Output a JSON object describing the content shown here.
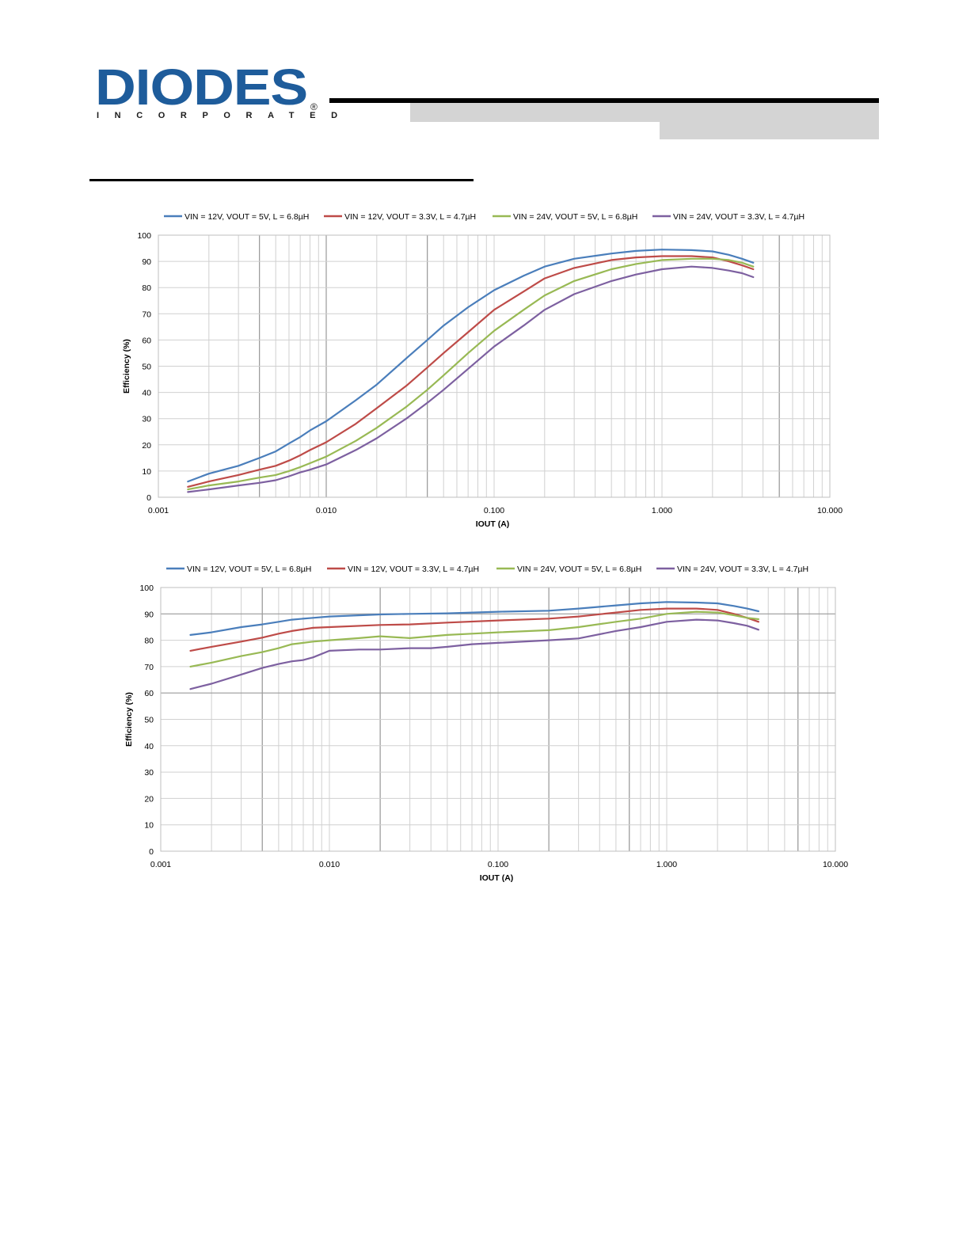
{
  "header": {
    "logo_text": "DIODES",
    "logo_subtext": "INCORPORATED",
    "logo_mark": "®"
  },
  "colors": {
    "logo_blue": "#1e5c9b",
    "series": [
      "#4a7ebb",
      "#be4b48",
      "#98b954",
      "#7d60a0"
    ],
    "grid": "#d0d0d0",
    "major_grid": "#9a9a9a"
  },
  "chart_data": [
    {
      "type": "line",
      "xscale": "log",
      "xlim": [
        0.001,
        10
      ],
      "ylim": [
        0,
        100
      ],
      "xticks": [
        "0.001",
        "0.010",
        "0.100",
        "1.000",
        "10.000"
      ],
      "yticks": [
        "0",
        "10",
        "20",
        "30",
        "40",
        "50",
        "60",
        "70",
        "80",
        "90",
        "100"
      ],
      "xlabel": "IOUT (A)",
      "ylabel": "Efficiency (%)",
      "legend_position": "top",
      "grid": true,
      "series": [
        {
          "name": "VIN = 12V, VOUT = 5V, L = 6.8µH",
          "points": [
            [
              0.0015,
              6
            ],
            [
              0.002,
              9
            ],
            [
              0.003,
              12
            ],
            [
              0.004,
              15
            ],
            [
              0.005,
              17.5
            ],
            [
              0.006,
              20.5
            ],
            [
              0.007,
              23
            ],
            [
              0.008,
              25.5
            ],
            [
              0.01,
              29
            ],
            [
              0.015,
              37
            ],
            [
              0.02,
              43
            ],
            [
              0.03,
              53
            ],
            [
              0.04,
              60
            ],
            [
              0.05,
              65.5
            ],
            [
              0.07,
              72.5
            ],
            [
              0.1,
              79
            ],
            [
              0.15,
              84.5
            ],
            [
              0.2,
              88
            ],
            [
              0.3,
              91
            ],
            [
              0.5,
              93
            ],
            [
              0.7,
              94
            ],
            [
              1,
              94.5
            ],
            [
              1.5,
              94.3
            ],
            [
              2,
              93.8
            ],
            [
              2.5,
              92.5
            ],
            [
              3,
              91
            ],
            [
              3.5,
              89.5
            ]
          ]
        },
        {
          "name": "VIN = 12V, VOUT = 3.3V, L = 4.7µH",
          "points": [
            [
              0.0015,
              4
            ],
            [
              0.002,
              6
            ],
            [
              0.003,
              8.5
            ],
            [
              0.004,
              10.5
            ],
            [
              0.005,
              12
            ],
            [
              0.006,
              14
            ],
            [
              0.007,
              16
            ],
            [
              0.008,
              18
            ],
            [
              0.01,
              21
            ],
            [
              0.015,
              28
            ],
            [
              0.02,
              34
            ],
            [
              0.03,
              42.5
            ],
            [
              0.04,
              49.5
            ],
            [
              0.05,
              55
            ],
            [
              0.07,
              63
            ],
            [
              0.1,
              71.5
            ],
            [
              0.15,
              78.5
            ],
            [
              0.2,
              83.5
            ],
            [
              0.3,
              87.5
            ],
            [
              0.5,
              90.5
            ],
            [
              0.7,
              91.5
            ],
            [
              1,
              92
            ],
            [
              1.5,
              92
            ],
            [
              2,
              91.5
            ],
            [
              2.5,
              90
            ],
            [
              3,
              88.5
            ],
            [
              3.5,
              87
            ]
          ]
        },
        {
          "name": "VIN = 24V, VOUT = 5V, L = 6.8µH",
          "points": [
            [
              0.0015,
              3
            ],
            [
              0.002,
              4.5
            ],
            [
              0.003,
              6
            ],
            [
              0.004,
              7.5
            ],
            [
              0.005,
              8.5
            ],
            [
              0.006,
              10
            ],
            [
              0.007,
              11.5
            ],
            [
              0.008,
              13
            ],
            [
              0.01,
              15.5
            ],
            [
              0.015,
              21.5
            ],
            [
              0.02,
              26.5
            ],
            [
              0.03,
              34.5
            ],
            [
              0.04,
              41
            ],
            [
              0.05,
              46.5
            ],
            [
              0.07,
              55
            ],
            [
              0.1,
              63.5
            ],
            [
              0.15,
              71.5
            ],
            [
              0.2,
              77
            ],
            [
              0.3,
              82.5
            ],
            [
              0.5,
              87
            ],
            [
              0.7,
              89
            ],
            [
              1,
              90.5
            ],
            [
              1.5,
              91
            ],
            [
              2,
              91
            ],
            [
              2.5,
              90.5
            ],
            [
              3,
              89.5
            ],
            [
              3.5,
              88
            ]
          ]
        },
        {
          "name": "VIN = 24V, VOUT = 3.3V, L = 4.7µH",
          "points": [
            [
              0.0015,
              2
            ],
            [
              0.002,
              3
            ],
            [
              0.003,
              4.5
            ],
            [
              0.004,
              5.5
            ],
            [
              0.005,
              6.5
            ],
            [
              0.006,
              8
            ],
            [
              0.007,
              9.5
            ],
            [
              0.008,
              10.5
            ],
            [
              0.01,
              12.5
            ],
            [
              0.015,
              18
            ],
            [
              0.02,
              22.5
            ],
            [
              0.03,
              30
            ],
            [
              0.04,
              36
            ],
            [
              0.05,
              41
            ],
            [
              0.07,
              49
            ],
            [
              0.1,
              57.5
            ],
            [
              0.15,
              65.5
            ],
            [
              0.2,
              71.5
            ],
            [
              0.3,
              77.5
            ],
            [
              0.5,
              82.5
            ],
            [
              0.7,
              85
            ],
            [
              1,
              87
            ],
            [
              1.5,
              88
            ],
            [
              2,
              87.5
            ],
            [
              2.5,
              86.5
            ],
            [
              3,
              85.5
            ],
            [
              3.5,
              84
            ]
          ]
        }
      ]
    },
    {
      "type": "line",
      "xscale": "log",
      "xlim": [
        0.001,
        10
      ],
      "ylim": [
        0,
        100
      ],
      "xticks": [
        "0.001",
        "0.010",
        "0.100",
        "1.000",
        "10.000"
      ],
      "yticks": [
        "0",
        "10",
        "20",
        "30",
        "40",
        "50",
        "60",
        "70",
        "80",
        "90",
        "100"
      ],
      "xlabel": "IOUT (A)",
      "ylabel": "Efficiency (%)",
      "legend_position": "top",
      "grid": true,
      "series": [
        {
          "name": "VIN = 12V, VOUT = 5V, L = 6.8µH",
          "points": [
            [
              0.0015,
              82
            ],
            [
              0.002,
              83
            ],
            [
              0.003,
              85
            ],
            [
              0.004,
              86
            ],
            [
              0.005,
              87
            ],
            [
              0.006,
              87.8
            ],
            [
              0.008,
              88.5
            ],
            [
              0.01,
              89
            ],
            [
              0.02,
              89.8
            ],
            [
              0.03,
              90
            ],
            [
              0.05,
              90.2
            ],
            [
              0.1,
              90.8
            ],
            [
              0.2,
              91.2
            ],
            [
              0.3,
              92
            ],
            [
              0.5,
              93.2
            ],
            [
              0.7,
              94
            ],
            [
              1,
              94.5
            ],
            [
              1.5,
              94.3
            ],
            [
              2,
              94
            ],
            [
              2.5,
              93
            ],
            [
              3,
              92
            ],
            [
              3.5,
              91
            ]
          ]
        },
        {
          "name": "VIN = 12V, VOUT = 3.3V, L = 4.7µH",
          "points": [
            [
              0.0015,
              76
            ],
            [
              0.002,
              77.5
            ],
            [
              0.003,
              79.5
            ],
            [
              0.004,
              81
            ],
            [
              0.005,
              82.5
            ],
            [
              0.006,
              83.5
            ],
            [
              0.008,
              84.7
            ],
            [
              0.01,
              85
            ],
            [
              0.02,
              85.8
            ],
            [
              0.03,
              86
            ],
            [
              0.05,
              86.7
            ],
            [
              0.1,
              87.5
            ],
            [
              0.2,
              88.2
            ],
            [
              0.3,
              89
            ],
            [
              0.5,
              90.5
            ],
            [
              0.7,
              91.5
            ],
            [
              1,
              92
            ],
            [
              1.5,
              92
            ],
            [
              2,
              91.5
            ],
            [
              2.5,
              90
            ],
            [
              3,
              88.5
            ],
            [
              3.5,
              87
            ]
          ]
        },
        {
          "name": "VIN = 24V, VOUT = 5V, L = 6.8µH",
          "points": [
            [
              0.0015,
              70
            ],
            [
              0.002,
              71.5
            ],
            [
              0.003,
              74
            ],
            [
              0.004,
              75.5
            ],
            [
              0.005,
              77
            ],
            [
              0.006,
              78.5
            ],
            [
              0.008,
              79.5
            ],
            [
              0.01,
              80
            ],
            [
              0.015,
              80.8
            ],
            [
              0.02,
              81.5
            ],
            [
              0.03,
              80.8
            ],
            [
              0.04,
              81.5
            ],
            [
              0.05,
              82
            ],
            [
              0.07,
              82.5
            ],
            [
              0.1,
              83
            ],
            [
              0.2,
              83.8
            ],
            [
              0.3,
              85
            ],
            [
              0.5,
              87
            ],
            [
              0.7,
              88.2
            ],
            [
              1,
              90
            ],
            [
              1.5,
              90.8
            ],
            [
              2,
              90.5
            ],
            [
              2.5,
              89.5
            ],
            [
              3,
              88.5
            ],
            [
              3.5,
              88
            ]
          ]
        },
        {
          "name": "VIN = 24V, VOUT = 3.3V, L = 4.7µH",
          "points": [
            [
              0.0015,
              61.5
            ],
            [
              0.002,
              63.5
            ],
            [
              0.003,
              67
            ],
            [
              0.004,
              69.5
            ],
            [
              0.005,
              71
            ],
            [
              0.006,
              72
            ],
            [
              0.007,
              72.5
            ],
            [
              0.008,
              73.5
            ],
            [
              0.01,
              76
            ],
            [
              0.015,
              76.5
            ],
            [
              0.02,
              76.5
            ],
            [
              0.03,
              77
            ],
            [
              0.04,
              77
            ],
            [
              0.05,
              77.5
            ],
            [
              0.07,
              78.5
            ],
            [
              0.1,
              79
            ],
            [
              0.2,
              80
            ],
            [
              0.3,
              80.7
            ],
            [
              0.5,
              83.5
            ],
            [
              0.7,
              85
            ],
            [
              1,
              87
            ],
            [
              1.5,
              87.8
            ],
            [
              2,
              87.5
            ],
            [
              2.5,
              86.5
            ],
            [
              3,
              85.5
            ],
            [
              3.5,
              84
            ]
          ]
        }
      ]
    }
  ]
}
